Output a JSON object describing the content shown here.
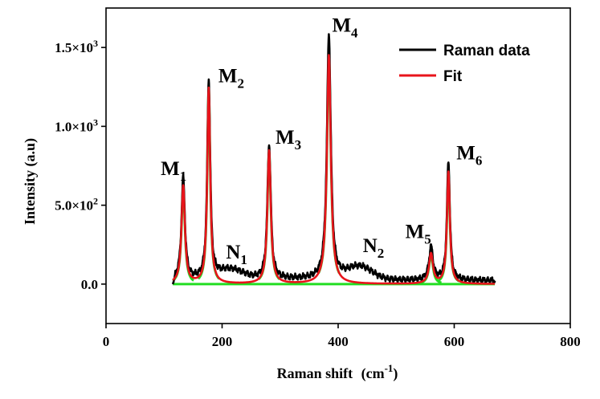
{
  "chart_data": {
    "type": "line",
    "xlabel": "Raman shift",
    "xlabel_unit": "(cm",
    "xlabel_unit_exp": "-1",
    "xlabel_unit_close": ")",
    "ylabel": "Intensity (a.u)",
    "xlim": [
      0,
      800
    ],
    "ylim": [
      -250,
      1750
    ],
    "x_ticks": [
      0,
      200,
      400,
      600,
      800
    ],
    "x_tick_labels": [
      "0",
      "200",
      "400",
      "600",
      "800"
    ],
    "y_ticks": [
      0,
      500,
      1000,
      1500
    ],
    "y_tick_labels": [
      {
        "base": "0.0",
        "exp": ""
      },
      {
        "base": "5.0×10",
        "exp": "2"
      },
      {
        "base": "1.0×10",
        "exp": "3"
      },
      {
        "base": "1.5×10",
        "exp": "3"
      }
    ],
    "legend": {
      "position": "top-right",
      "entries": [
        {
          "label": "Raman data",
          "color": "#000000"
        },
        {
          "label": "Fit",
          "color": "#e8141b"
        }
      ]
    },
    "x_range": [
      115,
      670
    ],
    "baseline_color": "#22dd22",
    "series": [
      {
        "name": "Raman data",
        "color": "#000000"
      },
      {
        "name": "Fit",
        "color": "#e8141b"
      },
      {
        "name": "Component peaks",
        "color": "#22dd22"
      }
    ],
    "peaks": [
      {
        "label": "M",
        "sub": "1",
        "x": 133,
        "height": 640,
        "fit_height": 620,
        "width": 3.5
      },
      {
        "label": "M",
        "sub": "2",
        "x": 177,
        "height": 1260,
        "fit_height": 1240,
        "width": 3.0
      },
      {
        "label": "M",
        "sub": "3",
        "x": 281,
        "height": 850,
        "fit_height": 845,
        "width": 3.5
      },
      {
        "label": "M",
        "sub": "4",
        "x": 384,
        "height": 1550,
        "fit_height": 1450,
        "width": 4.0
      },
      {
        "label": "M",
        "sub": "5",
        "x": 560,
        "height": 210,
        "fit_height": 190,
        "width": 4.0
      },
      {
        "label": "M",
        "sub": "6",
        "x": 590,
        "height": 750,
        "fit_height": 710,
        "width": 3.0
      }
    ],
    "broad_features": [
      {
        "label": "N",
        "sub": "1",
        "x": 215,
        "height": 60,
        "width": 30
      },
      {
        "label": "N",
        "sub": "2",
        "x": 437,
        "height": 80,
        "width": 30
      }
    ]
  }
}
